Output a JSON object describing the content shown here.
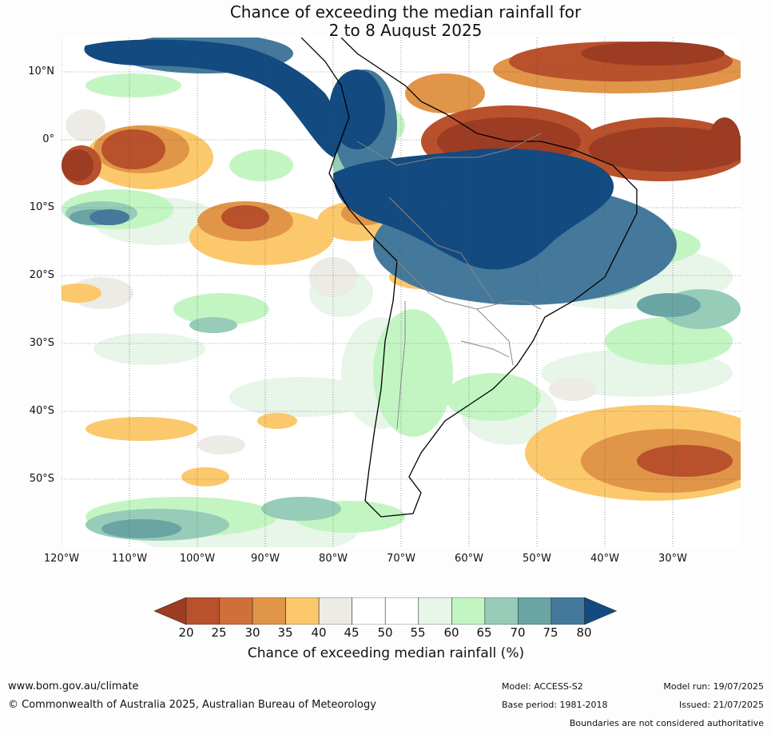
{
  "title_line1": "Chance of exceeding the median rainfall for",
  "title_line2": "2 to 8 August 2025",
  "map": {
    "lat_labels": [
      "10°N",
      "0°",
      "10°S",
      "20°S",
      "30°S",
      "40°S",
      "50°S"
    ],
    "lon_labels": [
      "120°W",
      "110°W",
      "100°W",
      "90°W",
      "80°W",
      "70°W",
      "60°W",
      "50°W",
      "40°W",
      "30°W"
    ]
  },
  "legend": {
    "ticks": [
      "20",
      "25",
      "30",
      "35",
      "40",
      "45",
      "50",
      "55",
      "60",
      "65",
      "70",
      "75",
      "80"
    ],
    "colors": [
      "#9c3c22",
      "#b8512c",
      "#cf6f3a",
      "#e19548",
      "#fbc96c",
      "#edebe6",
      "#ffffff",
      "#ffffff",
      "#e8f5e9",
      "#c3f5c3",
      "#96ccb8",
      "#6aa5a4",
      "#44799b",
      "#134a80"
    ],
    "label": "Chance of exceeding median rainfall (%)"
  },
  "footer": {
    "website": "www.bom.gov.au/climate",
    "copyright": "© Commonwealth of Australia 2025, Australian Bureau of Meteorology",
    "model": "Model: ACCESS-S2",
    "base_period": "Base period: 1981-2018",
    "model_run": "Model run: 19/07/2025",
    "issued": "Issued: 21/07/2025",
    "disclaimer": "Boundaries are not considered authoritative"
  }
}
